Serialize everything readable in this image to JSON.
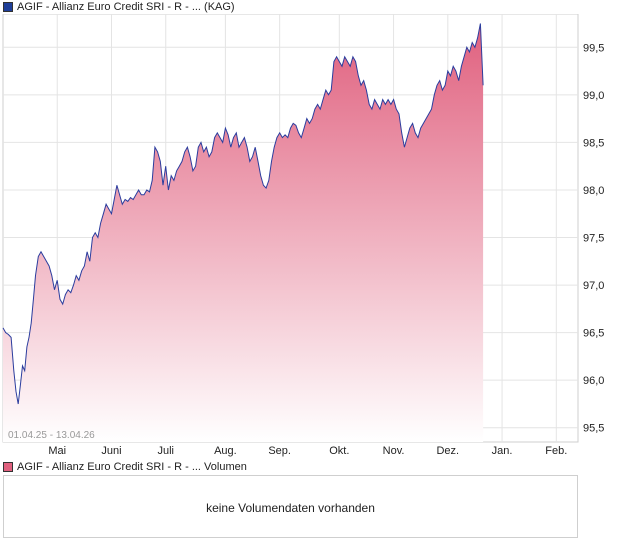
{
  "legend": {
    "price_label": "AGIF - Allianz Euro Credit SRI - R - ... (KAG)",
    "price_swatch_color": "#1f3f99",
    "volume_label": "AGIF - Allianz Euro Credit SRI - R - ... Volumen",
    "volume_swatch_color": "#e0607e"
  },
  "volume": {
    "message": "keine Volumendaten vorhanden"
  },
  "chart_data": {
    "type": "area",
    "title": "",
    "date_range_label": "01.04.25 - 13.04.26",
    "xlabel": "",
    "ylabel": "",
    "x_ticks": [
      {
        "label": "Mai",
        "pos": 1.0
      },
      {
        "label": "Juni",
        "pos": 2.0
      },
      {
        "label": "Juli",
        "pos": 3.0
      },
      {
        "label": "Aug.",
        "pos": 4.1
      },
      {
        "label": "Sep.",
        "pos": 5.1
      },
      {
        "label": "Okt.",
        "pos": 6.2
      },
      {
        "label": "Nov.",
        "pos": 7.2
      },
      {
        "label": "Dez.",
        "pos": 8.2
      },
      {
        "label": "Jan.",
        "pos": 9.2
      },
      {
        "label": "Feb.",
        "pos": 10.2
      }
    ],
    "y_ticks": [
      95.5,
      96.0,
      96.5,
      97.0,
      97.5,
      98.0,
      98.5,
      99.0,
      99.5
    ],
    "y_tick_labels": [
      "95,5",
      "96,0",
      "96,5",
      "97,0",
      "97,5",
      "98,0",
      "98,5",
      "99,0",
      "99,5"
    ],
    "xlim": [
      0,
      10.6
    ],
    "ylim": [
      95.35,
      99.85
    ],
    "grid": true,
    "line_color": "#2b3d9e",
    "fill_top_color": "#e0607e",
    "fill_bottom_color": "#ffffff",
    "series": [
      {
        "values": [
          [
            0.0,
            96.55
          ],
          [
            0.05,
            96.5
          ],
          [
            0.1,
            96.48
          ],
          [
            0.15,
            96.45
          ],
          [
            0.2,
            96.1
          ],
          [
            0.24,
            95.88
          ],
          [
            0.28,
            95.75
          ],
          [
            0.32,
            95.95
          ],
          [
            0.36,
            96.15
          ],
          [
            0.4,
            96.1
          ],
          [
            0.44,
            96.35
          ],
          [
            0.48,
            96.45
          ],
          [
            0.52,
            96.6
          ],
          [
            0.56,
            96.85
          ],
          [
            0.6,
            97.1
          ],
          [
            0.65,
            97.3
          ],
          [
            0.7,
            97.35
          ],
          [
            0.75,
            97.3
          ],
          [
            0.8,
            97.25
          ],
          [
            0.85,
            97.2
          ],
          [
            0.9,
            97.1
          ],
          [
            0.95,
            96.95
          ],
          [
            1.0,
            97.05
          ],
          [
            1.05,
            96.85
          ],
          [
            1.1,
            96.8
          ],
          [
            1.15,
            96.9
          ],
          [
            1.2,
            96.95
          ],
          [
            1.25,
            96.92
          ],
          [
            1.3,
            97.0
          ],
          [
            1.35,
            97.1
          ],
          [
            1.4,
            97.05
          ],
          [
            1.45,
            97.15
          ],
          [
            1.5,
            97.2
          ],
          [
            1.55,
            97.35
          ],
          [
            1.6,
            97.25
          ],
          [
            1.65,
            97.5
          ],
          [
            1.7,
            97.55
          ],
          [
            1.75,
            97.5
          ],
          [
            1.8,
            97.65
          ],
          [
            1.85,
            97.75
          ],
          [
            1.9,
            97.85
          ],
          [
            1.95,
            97.8
          ],
          [
            2.0,
            97.75
          ],
          [
            2.05,
            97.9
          ],
          [
            2.1,
            98.05
          ],
          [
            2.15,
            97.95
          ],
          [
            2.2,
            97.85
          ],
          [
            2.25,
            97.9
          ],
          [
            2.3,
            97.88
          ],
          [
            2.35,
            97.92
          ],
          [
            2.4,
            97.9
          ],
          [
            2.45,
            97.95
          ],
          [
            2.5,
            98.0
          ],
          [
            2.55,
            97.95
          ],
          [
            2.6,
            97.95
          ],
          [
            2.65,
            98.0
          ],
          [
            2.7,
            97.98
          ],
          [
            2.75,
            98.1
          ],
          [
            2.8,
            98.45
          ],
          [
            2.85,
            98.4
          ],
          [
            2.9,
            98.3
          ],
          [
            2.95,
            98.05
          ],
          [
            3.0,
            98.25
          ],
          [
            3.05,
            98.0
          ],
          [
            3.1,
            98.15
          ],
          [
            3.15,
            98.1
          ],
          [
            3.2,
            98.2
          ],
          [
            3.25,
            98.25
          ],
          [
            3.3,
            98.3
          ],
          [
            3.35,
            98.4
          ],
          [
            3.4,
            98.45
          ],
          [
            3.45,
            98.35
          ],
          [
            3.5,
            98.2
          ],
          [
            3.55,
            98.25
          ],
          [
            3.6,
            98.45
          ],
          [
            3.65,
            98.5
          ],
          [
            3.7,
            98.4
          ],
          [
            3.75,
            98.45
          ],
          [
            3.8,
            98.35
          ],
          [
            3.85,
            98.4
          ],
          [
            3.9,
            98.55
          ],
          [
            3.95,
            98.6
          ],
          [
            4.0,
            98.55
          ],
          [
            4.05,
            98.5
          ],
          [
            4.1,
            98.65
          ],
          [
            4.15,
            98.58
          ],
          [
            4.2,
            98.45
          ],
          [
            4.25,
            98.55
          ],
          [
            4.3,
            98.6
          ],
          [
            4.35,
            98.45
          ],
          [
            4.4,
            98.5
          ],
          [
            4.45,
            98.55
          ],
          [
            4.5,
            98.45
          ],
          [
            4.55,
            98.3
          ],
          [
            4.6,
            98.35
          ],
          [
            4.65,
            98.45
          ],
          [
            4.7,
            98.3
          ],
          [
            4.75,
            98.15
          ],
          [
            4.8,
            98.05
          ],
          [
            4.85,
            98.02
          ],
          [
            4.9,
            98.1
          ],
          [
            4.95,
            98.3
          ],
          [
            5.0,
            98.45
          ],
          [
            5.05,
            98.55
          ],
          [
            5.1,
            98.6
          ],
          [
            5.15,
            98.55
          ],
          [
            5.2,
            98.58
          ],
          [
            5.25,
            98.55
          ],
          [
            5.3,
            98.65
          ],
          [
            5.35,
            98.7
          ],
          [
            5.4,
            98.68
          ],
          [
            5.45,
            98.6
          ],
          [
            5.5,
            98.55
          ],
          [
            5.55,
            98.65
          ],
          [
            5.6,
            98.75
          ],
          [
            5.65,
            98.7
          ],
          [
            5.7,
            98.75
          ],
          [
            5.75,
            98.85
          ],
          [
            5.8,
            98.9
          ],
          [
            5.85,
            98.85
          ],
          [
            5.9,
            98.95
          ],
          [
            5.95,
            99.05
          ],
          [
            6.0,
            99.0
          ],
          [
            6.05,
            99.05
          ],
          [
            6.1,
            99.35
          ],
          [
            6.15,
            99.4
          ],
          [
            6.2,
            99.35
          ],
          [
            6.25,
            99.3
          ],
          [
            6.3,
            99.4
          ],
          [
            6.35,
            99.35
          ],
          [
            6.4,
            99.3
          ],
          [
            6.45,
            99.4
          ],
          [
            6.5,
            99.35
          ],
          [
            6.55,
            99.2
          ],
          [
            6.6,
            99.1
          ],
          [
            6.65,
            99.15
          ],
          [
            6.7,
            99.05
          ],
          [
            6.75,
            98.9
          ],
          [
            6.8,
            98.85
          ],
          [
            6.85,
            98.95
          ],
          [
            6.9,
            98.9
          ],
          [
            6.95,
            98.85
          ],
          [
            7.0,
            98.95
          ],
          [
            7.05,
            98.9
          ],
          [
            7.1,
            98.95
          ],
          [
            7.15,
            98.9
          ],
          [
            7.2,
            98.95
          ],
          [
            7.25,
            98.85
          ],
          [
            7.3,
            98.8
          ],
          [
            7.35,
            98.6
          ],
          [
            7.4,
            98.45
          ],
          [
            7.45,
            98.55
          ],
          [
            7.5,
            98.65
          ],
          [
            7.55,
            98.7
          ],
          [
            7.6,
            98.6
          ],
          [
            7.65,
            98.55
          ],
          [
            7.7,
            98.65
          ],
          [
            7.75,
            98.7
          ],
          [
            7.8,
            98.75
          ],
          [
            7.85,
            98.8
          ],
          [
            7.9,
            98.85
          ],
          [
            7.95,
            99.0
          ],
          [
            8.0,
            99.1
          ],
          [
            8.05,
            99.15
          ],
          [
            8.1,
            99.05
          ],
          [
            8.15,
            99.1
          ],
          [
            8.2,
            99.25
          ],
          [
            8.25,
            99.2
          ],
          [
            8.3,
            99.3
          ],
          [
            8.35,
            99.25
          ],
          [
            8.4,
            99.15
          ],
          [
            8.45,
            99.3
          ],
          [
            8.5,
            99.4
          ],
          [
            8.55,
            99.5
          ],
          [
            8.6,
            99.45
          ],
          [
            8.65,
            99.55
          ],
          [
            8.7,
            99.5
          ],
          [
            8.75,
            99.6
          ],
          [
            8.8,
            99.75
          ],
          [
            8.85,
            99.1
          ]
        ]
      }
    ]
  }
}
